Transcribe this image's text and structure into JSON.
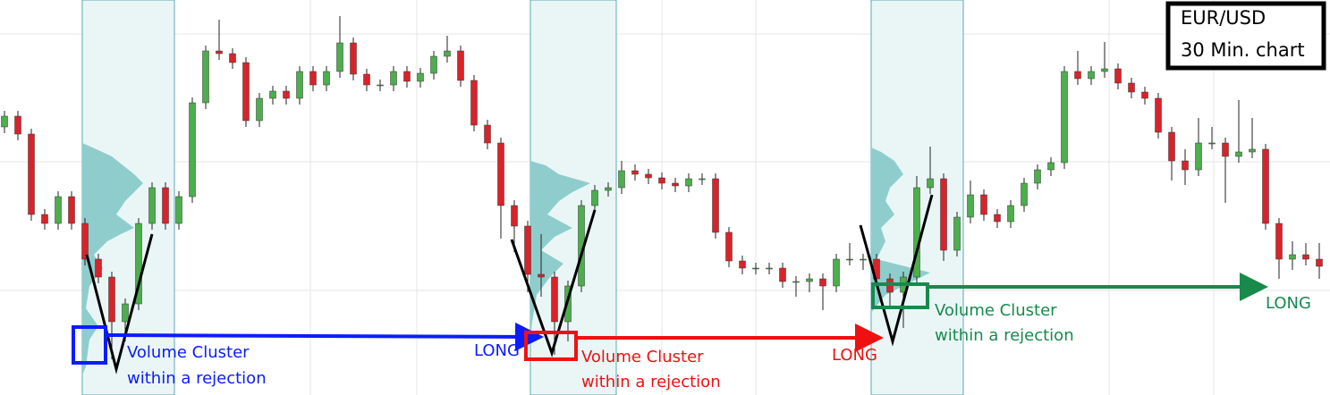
{
  "chart_data": {
    "type": "candlestick",
    "title": "EUR/USD",
    "subtitle": "30 Min. chart",
    "up_color": "#4cae4c",
    "down_color": "#d9232a",
    "wick_color": "#222222",
    "ylim": [
      0,
      442
    ],
    "open": [
      300,
      312,
      292,
      202,
      192,
      222,
      192,
      152,
      132,
      82,
      102,
      192,
      232,
      192,
      222,
      327,
      385,
      382,
      372,
      307,
      332,
      340,
      332,
      362,
      347,
      362,
      394,
      359,
      347,
      347,
      362,
      351,
      360,
      379,
      385,
      352,
      302,
      282,
      212,
      189,
      135,
      132,
      82,
      122,
      212,
      229,
      232,
      251,
      247,
      243,
      237,
      234,
      242,
      242,
      182,
      150,
      142,
      142,
      142,
      127,
      127,
      130,
      122,
      152,
      152,
      152,
      130,
      115,
      132,
      232,
      242,
      162,
      199,
      224,
      202,
      194,
      212,
      237,
      252,
      260,
      362,
      354,
      362,
      365,
      349,
      339,
      332,
      294,
      262,
      252,
      282,
      282,
      267,
      272,
      275,
      192,
      152,
      157,
      152
    ],
    "high": [
      318,
      318,
      298,
      208,
      228,
      228,
      198,
      158,
      138,
      108,
      198,
      238,
      238,
      228,
      333,
      391,
      420,
      388,
      378,
      338,
      346,
      346,
      368,
      368,
      368,
      424,
      400,
      365,
      353,
      368,
      368,
      366,
      385,
      402,
      391,
      358,
      308,
      288,
      218,
      195,
      180,
      138,
      128,
      218,
      235,
      238,
      262,
      258,
      253,
      249,
      243,
      248,
      248,
      248,
      188,
      156,
      148,
      148,
      148,
      133,
      136,
      136,
      158,
      170,
      158,
      158,
      136,
      138,
      245,
      278,
      248,
      205,
      240,
      230,
      208,
      218,
      243,
      258,
      266,
      368,
      385,
      368,
      395,
      371,
      355,
      345,
      338,
      300,
      275,
      310,
      300,
      288,
      330,
      310,
      281,
      198,
      172,
      170,
      170
    ],
    "low": [
      293,
      285,
      195,
      185,
      185,
      185,
      145,
      125,
      40,
      60,
      95,
      185,
      185,
      185,
      215,
      320,
      375,
      365,
      300,
      300,
      325,
      325,
      325,
      340,
      340,
      355,
      352,
      340,
      340,
      340,
      344,
      344,
      353,
      372,
      345,
      295,
      275,
      175,
      160,
      115,
      110,
      45,
      60,
      115,
      205,
      222,
      225,
      240,
      236,
      230,
      227,
      227,
      235,
      175,
      143,
      135,
      135,
      135,
      120,
      110,
      115,
      95,
      115,
      145,
      140,
      123,
      100,
      75,
      125,
      225,
      150,
      155,
      192,
      195,
      187,
      187,
      205,
      230,
      245,
      253,
      347,
      347,
      355,
      342,
      332,
      325,
      287,
      240,
      235,
      245,
      275,
      215,
      260,
      265,
      185,
      130,
      140,
      145,
      130
    ],
    "close": [
      312,
      292,
      202,
      192,
      222,
      192,
      152,
      132,
      82,
      102,
      192,
      232,
      192,
      222,
      327,
      385,
      382,
      372,
      307,
      332,
      340,
      332,
      362,
      347,
      362,
      394,
      359,
      347,
      347,
      362,
      351,
      360,
      379,
      385,
      352,
      302,
      282,
      212,
      189,
      135,
      132,
      82,
      122,
      212,
      229,
      232,
      251,
      247,
      243,
      237,
      234,
      242,
      242,
      182,
      150,
      142,
      142,
      142,
      127,
      127,
      130,
      122,
      152,
      152,
      152,
      130,
      115,
      132,
      232,
      242,
      162,
      199,
      224,
      202,
      194,
      212,
      237,
      252,
      260,
      362,
      354,
      362,
      365,
      349,
      339,
      332,
      294,
      262,
      252,
      282,
      282,
      267,
      272,
      275,
      192,
      152,
      157,
      152,
      144
    ],
    "annotations": [
      "Volume Cluster",
      "within a rejection",
      "LONG",
      "Volume Cluster",
      "within a rejection",
      "LONG",
      "Volume Cluster",
      "within a rejection",
      "LONG"
    ]
  }
}
